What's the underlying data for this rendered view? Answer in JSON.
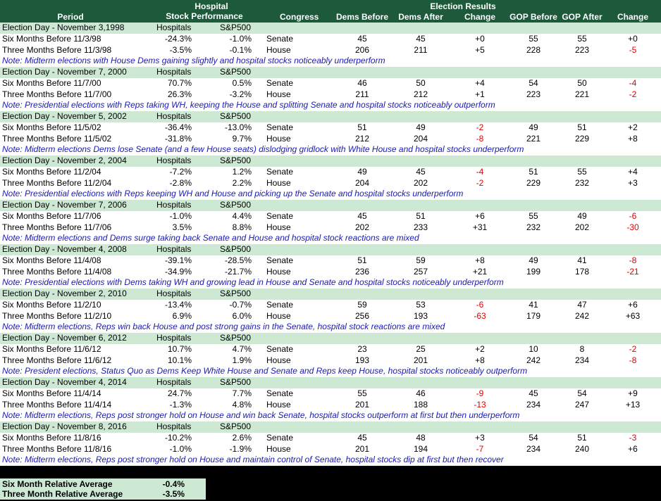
{
  "header": {
    "period": "Period",
    "hospital_line1": "Hospital",
    "hospital_line2": "Stock Performance",
    "congress": "Congress",
    "election_results": "Election Results",
    "columns": [
      "Dems Before",
      "Dems After",
      "Change",
      "GOP Before",
      "GOP After",
      "Change"
    ]
  },
  "blocks": [
    {
      "election_day": "Election Day - November 3,1998",
      "hospitals": "Hospitals",
      "sp500": "S&P500",
      "rows": [
        [
          "Six Months Before 11/3/98",
          "-24.3%",
          "-1.0%",
          "Senate",
          "45",
          "45",
          "+0",
          "55",
          "55",
          "+0"
        ],
        [
          "Three Months Before 11/3/98",
          "-3.5%",
          "-0.1%",
          "House",
          "206",
          "211",
          "+5",
          "228",
          "223",
          "-5"
        ]
      ],
      "note": "Note: Midterm elections with House Dems gaining slightly and hospital stocks noticeably underperform"
    },
    {
      "election_day": "Election Day - November 7, 2000",
      "hospitals": "Hospitals",
      "sp500": "S&P500",
      "rows": [
        [
          "Six Months Before 11/7/00",
          "70.7%",
          "0.5%",
          "Senate",
          "46",
          "50",
          "+4",
          "54",
          "50",
          "-4"
        ],
        [
          "Three Months Before 11/7/00",
          "26.3%",
          "-3.2%",
          "House",
          "211",
          "212",
          "+1",
          "223",
          "221",
          "-2"
        ]
      ],
      "note": "Note: Presidential elections with Reps taking WH, keeping the House and splitting Senate and hospital stocks noticeably outperform"
    },
    {
      "election_day": "Election Day - November 5, 2002",
      "hospitals": "Hospitals",
      "sp500": "S&P500",
      "rows": [
        [
          "Six Months Before 11/5/02",
          "-36.4%",
          "-13.0%",
          "Senate",
          "51",
          "49",
          "-2",
          "49",
          "51",
          "+2"
        ],
        [
          "Three Months Before 11/5/02",
          "-31.8%",
          "9.7%",
          "House",
          "212",
          "204",
          "-8",
          "221",
          "229",
          "+8"
        ]
      ],
      "note": "Note: Midterm elections Dems lose Senate (and a few House seats) dislodging gridlock with White House and hospital stocks underperform"
    },
    {
      "election_day": "Election Day - November 2, 2004",
      "hospitals": "Hospitals",
      "sp500": "S&P500",
      "rows": [
        [
          "Six Months Before 11/2/04",
          "-7.2%",
          "1.2%",
          "Senate",
          "49",
          "45",
          "-4",
          "51",
          "55",
          "+4"
        ],
        [
          "Three Months Before 11/2/04",
          "-2.8%",
          "2.2%",
          "House",
          "204",
          "202",
          "-2",
          "229",
          "232",
          "+3"
        ]
      ],
      "note": "Note: Presidential elections with Reps keeping WH and House and picking up the Senate and hospital stocks underperform"
    },
    {
      "election_day": "Election Day - November 7, 2006",
      "hospitals": "Hospitals",
      "sp500": "S&P500",
      "rows": [
        [
          "Six Months Before 11/7/06",
          "-1.0%",
          "4.4%",
          "Senate",
          "45",
          "51",
          "+6",
          "55",
          "49",
          "-6"
        ],
        [
          "Three Months Before 11/7/06",
          "3.5%",
          "8.8%",
          "House",
          "202",
          "233",
          "+31",
          "232",
          "202",
          "-30"
        ]
      ],
      "note": "Note: Midterm elections and Dems surge taking back Senate and House and hospital stock reactions are mixed"
    },
    {
      "election_day": "Election Day - November 4, 2008",
      "hospitals": "Hospitals",
      "sp500": "S&P500",
      "rows": [
        [
          "Six Months Before 11/4/08",
          "-39.1%",
          "-28.5%",
          "Senate",
          "51",
          "59",
          "+8",
          "49",
          "41",
          "-8"
        ],
        [
          "Three Months Before 11/4/08",
          "-34.9%",
          "-21.7%",
          "House",
          "236",
          "257",
          "+21",
          "199",
          "178",
          "-21"
        ]
      ],
      "note": "Note: Presidential elections with Dems taking WH and growing lead in House and Senate and hospital stocks noticeably underperform"
    },
    {
      "election_day": "Election Day - November 2, 2010",
      "hospitals": "Hospitals",
      "sp500": "S&P500",
      "rows": [
        [
          "Six Months Before 11/2/10",
          "-13.4%",
          "-0.7%",
          "Senate",
          "59",
          "53",
          "-6",
          "41",
          "47",
          "+6"
        ],
        [
          "Three Months Before 11/2/10",
          "6.9%",
          "6.0%",
          "House",
          "256",
          "193",
          "-63",
          "179",
          "242",
          "+63"
        ]
      ],
      "note": "Note: Midterm elections, Reps win back House and post strong gains in the Senate, hospital stock reactions are mixed"
    },
    {
      "election_day": "Election Day - November 6, 2012",
      "hospitals": "Hospitals",
      "sp500": "S&P500",
      "rows": [
        [
          "Six Months Before 11/6/12",
          "10.7%",
          "4.7%",
          "Senate",
          "23",
          "25",
          "+2",
          "10",
          "8",
          "-2"
        ],
        [
          "Three Months Before 11/6/12",
          "10.1%",
          "1.9%",
          "House",
          "193",
          "201",
          "+8",
          "242",
          "234",
          "-8"
        ]
      ],
      "note": "Note: President elections, Status Quo as Dems Keep White House and Senate and Reps keep House, hospital stocks noticeably outperform"
    },
    {
      "election_day": "Election Day - November 4, 2014",
      "hospitals": "Hospitals",
      "sp500": "S&P500",
      "rows": [
        [
          "Six Months Before 11/4/14",
          "24.7%",
          "7.7%",
          "Senate",
          "55",
          "46",
          "-9",
          "45",
          "54",
          "+9"
        ],
        [
          "Three Months Before 11/4/14",
          "-1.3%",
          "4.8%",
          "House",
          "201",
          "188",
          "-13",
          "234",
          "247",
          "+13"
        ]
      ],
      "note": "Note: Midterm elections, Reps post stronger hold on House and win back Senate, hospital stocks outperform at first but then underperform"
    },
    {
      "election_day": "Election Day - November 8, 2016",
      "hospitals": "Hospitals",
      "sp500": "S&P500",
      "rows": [
        [
          "Six Months Before 11/8/16",
          "-10.2%",
          "2.6%",
          "Senate",
          "45",
          "48",
          "+3",
          "54",
          "51",
          "-3"
        ],
        [
          "Three Months Before 11/8/16",
          "-1.0%",
          "-1.9%",
          "House",
          "201",
          "194",
          "-7",
          "234",
          "240",
          "+6"
        ]
      ],
      "note": "Note: Midterm elections, Reps post stronger hold on House and maintain control of Senate, hospital stocks dip at first but then recover"
    }
  ],
  "summary": [
    [
      "Six Month Relative Average",
      "-0.4%"
    ],
    [
      "Three Month Relative Average",
      "-3.5%"
    ]
  ]
}
